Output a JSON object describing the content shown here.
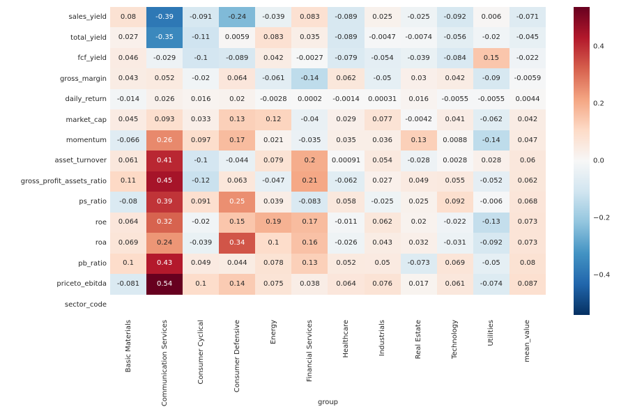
{
  "chart_data": {
    "type": "heatmap",
    "title": "",
    "xlabel": "group",
    "ylabel": "",
    "colormap": "RdBu_r",
    "colormap_stops": [
      "#053061",
      "#2166ac",
      "#4393c3",
      "#92c5de",
      "#d1e5f0",
      "#f7f7f7",
      "#fddbc7",
      "#f4a582",
      "#d6604d",
      "#b2182b",
      "#67001f"
    ],
    "vmin": -0.54,
    "vmax": 0.54,
    "grid": false,
    "legend_position": "right-colorbar",
    "columns": [
      "Basic Materials",
      "Communication Services",
      "Consumer Cyclical",
      "Consumer Defensive",
      "Energy",
      "Financial Services",
      "Healthcare",
      "Industrials",
      "Real Estate",
      "Technology",
      "Utilities",
      "mean_value"
    ],
    "rows": [
      "sales_yield",
      "total_yield",
      "fcf_yield",
      "gross_margin",
      "daily_return",
      "market_cap",
      "momentum",
      "asset_turnover",
      "gross_profit_assets_ratio",
      "ps_ratio",
      "roe",
      "roa",
      "pb_ratio",
      "priceto_ebitda",
      "sector_code"
    ],
    "values": [
      [
        0.08,
        -0.39,
        -0.091,
        -0.24,
        -0.039,
        0.083,
        -0.089,
        0.025,
        -0.025,
        -0.092,
        0.006,
        -0.071
      ],
      [
        0.027,
        -0.35,
        -0.11,
        0.0059,
        0.083,
        0.035,
        -0.089,
        -0.0047,
        -0.0074,
        -0.056,
        -0.02,
        -0.045
      ],
      [
        0.046,
        -0.029,
        -0.1,
        -0.089,
        0.042,
        -0.0027,
        -0.079,
        -0.054,
        -0.039,
        -0.084,
        0.15,
        -0.022
      ],
      [
        0.043,
        0.052,
        -0.02,
        0.064,
        -0.061,
        -0.14,
        0.062,
        -0.05,
        0.03,
        0.042,
        -0.09,
        -0.0059
      ],
      [
        -0.014,
        0.026,
        0.016,
        0.02,
        -0.0028,
        0.0002,
        -0.0014,
        0.00031,
        0.016,
        -0.0055,
        -0.0055,
        0.0044
      ],
      [
        0.045,
        0.093,
        0.033,
        0.13,
        0.12,
        -0.04,
        0.029,
        0.077,
        -0.0042,
        0.041,
        -0.062,
        0.042
      ],
      [
        -0.066,
        0.26,
        0.097,
        0.17,
        0.021,
        -0.035,
        0.035,
        0.036,
        0.13,
        0.0088,
        -0.14,
        0.047
      ],
      [
        0.061,
        0.41,
        -0.1,
        -0.044,
        0.079,
        0.2,
        0.00091,
        0.054,
        -0.028,
        0.0028,
        0.028,
        0.06
      ],
      [
        0.11,
        0.45,
        -0.12,
        0.063,
        -0.047,
        0.21,
        -0.062,
        0.027,
        0.049,
        0.055,
        -0.052,
        0.062
      ],
      [
        -0.08,
        0.39,
        0.091,
        0.25,
        0.039,
        -0.083,
        0.058,
        -0.025,
        0.025,
        0.092,
        -0.006,
        0.068
      ],
      [
        0.064,
        0.32,
        -0.02,
        0.15,
        0.19,
        0.17,
        -0.011,
        0.062,
        0.02,
        -0.022,
        -0.13,
        0.073
      ],
      [
        0.069,
        0.24,
        -0.039,
        0.34,
        0.1,
        0.16,
        -0.026,
        0.043,
        0.032,
        -0.031,
        -0.092,
        0.073
      ],
      [
        0.1,
        0.43,
        0.049,
        0.044,
        0.078,
        0.13,
        0.052,
        0.05,
        -0.073,
        0.069,
        -0.05,
        0.08
      ],
      [
        -0.081,
        0.54,
        0.1,
        0.14,
        0.075,
        0.038,
        0.064,
        0.076,
        0.017,
        0.061,
        -0.074,
        0.087
      ],
      [
        null,
        null,
        null,
        null,
        null,
        null,
        null,
        null,
        null,
        null,
        null,
        null
      ]
    ],
    "colorbar": {
      "tick_labels": [
        "0.4",
        "0.2",
        "0.0",
        "−0.2",
        "−0.4"
      ],
      "tick_values": [
        0.4,
        0.2,
        0.0,
        -0.2,
        -0.4
      ]
    },
    "annotation_text_colors": {
      "dark": "#262626",
      "light": "#ffffff"
    },
    "background_color": "#ffffff"
  }
}
